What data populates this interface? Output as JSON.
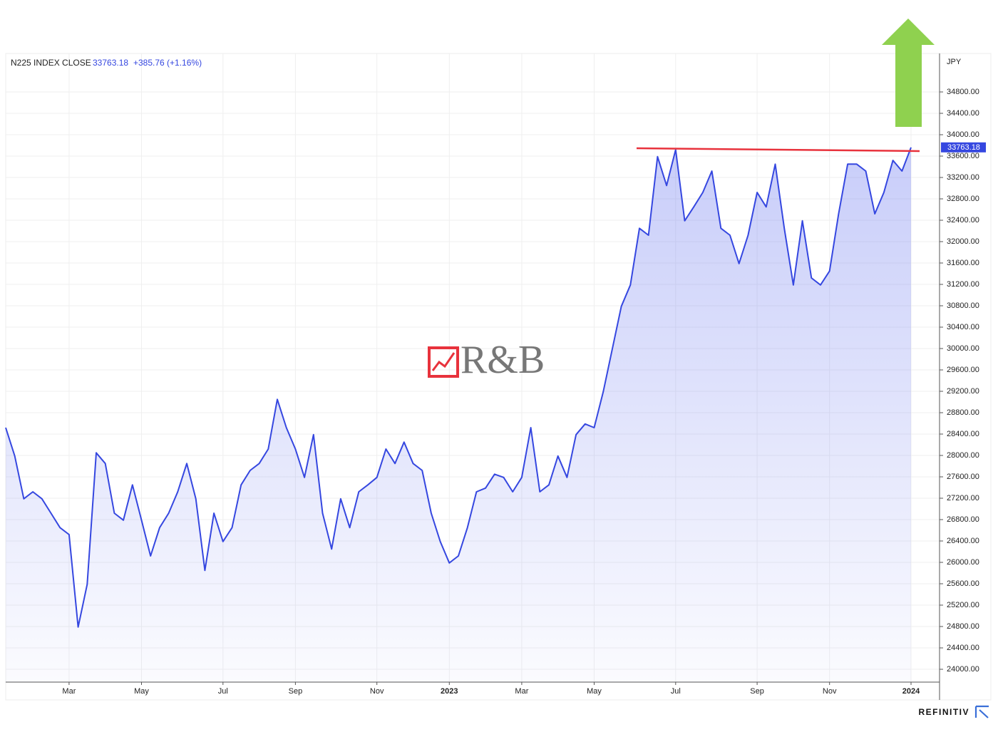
{
  "chart_data": {
    "type": "line",
    "title": "N225 INDEX CLOSE",
    "close": "33763.18",
    "change": "+385.76 (+1.16%)",
    "y_label": "JPY",
    "watermark": "R&B",
    "source": "REFINITIV",
    "color": "#3547e0",
    "grid": true,
    "categories": [
      null,
      null,
      null,
      null,
      null,
      null,
      null,
      "Mar",
      null,
      null,
      null,
      null,
      null,
      null,
      null,
      "May",
      null,
      null,
      null,
      null,
      null,
      null,
      null,
      null,
      "Jul",
      null,
      null,
      null,
      null,
      null,
      null,
      null,
      "Sep",
      null,
      null,
      null,
      null,
      null,
      null,
      null,
      null,
      "Nov",
      null,
      null,
      null,
      null,
      null,
      null,
      null,
      "2023",
      null,
      null,
      null,
      null,
      null,
      null,
      null,
      "Mar",
      null,
      null,
      null,
      null,
      null,
      null,
      null,
      "May",
      null,
      null,
      null,
      null,
      null,
      null,
      null,
      null,
      "Jul",
      null,
      null,
      null,
      null,
      null,
      null,
      null,
      null,
      "Sep",
      null,
      null,
      null,
      null,
      null,
      null,
      null,
      "Nov",
      null,
      null,
      null,
      null,
      null,
      null,
      null,
      null,
      "2024"
    ],
    "values": [
      28520,
      27990,
      27190,
      27320,
      27190,
      26920,
      26650,
      26520,
      24790,
      25590,
      28050,
      27850,
      26920,
      26790,
      27450,
      26790,
      26120,
      26650,
      26920,
      27320,
      27850,
      27190,
      25850,
      26920,
      26390,
      26650,
      27450,
      27720,
      27850,
      28120,
      29050,
      28520,
      28120,
      27590,
      28390,
      26920,
      26250,
      27190,
      26650,
      27320,
      27450,
      27590,
      28120,
      27850,
      28250,
      27850,
      27720,
      26920,
      26390,
      25990,
      26120,
      26650,
      27320,
      27390,
      27650,
      27590,
      27320,
      27590,
      28520,
      27320,
      27450,
      27990,
      27590,
      28390,
      28590,
      28520,
      29190,
      29990,
      30790,
      31190,
      32250,
      32120,
      33590,
      33050,
      33720,
      32390,
      32650,
      32920,
      33320,
      32250,
      32120,
      31590,
      32120,
      32920,
      32650,
      33450,
      32250,
      31190,
      32390,
      31320,
      31190,
      31450,
      32520,
      33450,
      33450,
      33320,
      32520,
      32920,
      33520,
      33320,
      33763.18
    ],
    "ylim": [
      23760,
      35520
    ],
    "yticks": [
      {
        "value": 24000,
        "label": "24000.00"
      },
      {
        "value": 24400,
        "label": "24400.00"
      },
      {
        "value": 24800,
        "label": "24800.00"
      },
      {
        "value": 25200,
        "label": "25200.00"
      },
      {
        "value": 25600,
        "label": "25600.00"
      },
      {
        "value": 26000,
        "label": "26000.00"
      },
      {
        "value": 26400,
        "label": "26400.00"
      },
      {
        "value": 26800,
        "label": "26800.00"
      },
      {
        "value": 27200,
        "label": "27200.00"
      },
      {
        "value": 27600,
        "label": "27600.00"
      },
      {
        "value": 28000,
        "label": "28000.00"
      },
      {
        "value": 28400,
        "label": "28400.00"
      },
      {
        "value": 28800,
        "label": "28800.00"
      },
      {
        "value": 29200,
        "label": "29200.00"
      },
      {
        "value": 29600,
        "label": "29600.00"
      },
      {
        "value": 30000,
        "label": "30000.00"
      },
      {
        "value": 30400,
        "label": "30400.00"
      },
      {
        "value": 30800,
        "label": "30800.00"
      },
      {
        "value": 31200,
        "label": "31200.00"
      },
      {
        "value": 31600,
        "label": "31600.00"
      },
      {
        "value": 32000,
        "label": "32000.00"
      },
      {
        "value": 32400,
        "label": "32400.00"
      },
      {
        "value": 32800,
        "label": "32800.00"
      },
      {
        "value": 33200,
        "label": "33200.00"
      },
      {
        "value": 33600,
        "label": "33600.00"
      },
      {
        "value": 34000,
        "label": "34000.00"
      },
      {
        "value": 34400,
        "label": "34400.00"
      },
      {
        "value": 34800,
        "label": "34800.00"
      }
    ]
  }
}
